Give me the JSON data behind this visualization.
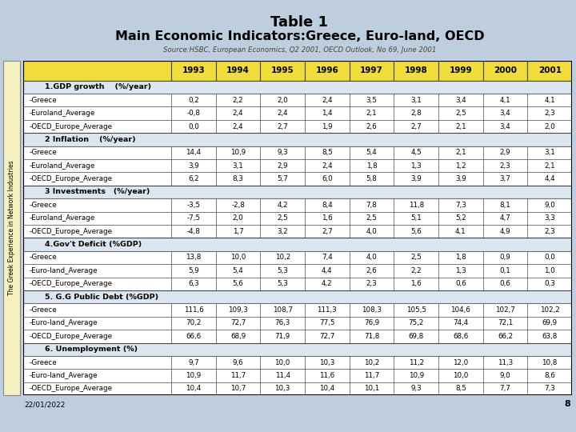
{
  "title_line1": "Table 1",
  "title_line2": "Main Economic Indicators:Greece, Euro-land, OECD",
  "source": "Source:HSBC, European Economics, Q2 2001, OECD Outlook, No 69, June 2001",
  "years": [
    "1993",
    "1994",
    "1995",
    "1996",
    "1997",
    "1998",
    "1999",
    "2000",
    "2001"
  ],
  "sections": [
    {
      "header": "1.GDP growth    (%/year)",
      "rows": [
        [
          "-Greece",
          "0,2",
          "2,2",
          "2,0",
          "2,4",
          "3,5",
          "3,1",
          "3,4",
          "4,1",
          "4,1"
        ],
        [
          "-Euroland_Average",
          "-0,8",
          "2,4",
          "2,4",
          "1,4",
          "2,1",
          "2,8",
          "2,5",
          "3,4",
          "2,3"
        ],
        [
          "-OECD_Europe_Average",
          "0,0",
          "2,4",
          "2,7",
          "1,9",
          "2,6",
          "2,7",
          "2,1",
          "3,4",
          "2,0"
        ]
      ]
    },
    {
      "header": "2 Inflation    (%/year)",
      "rows": [
        [
          "-Greece",
          "14,4",
          "10,9",
          "9,3",
          "8,5",
          "5,4",
          "4,5",
          "2,1",
          "2,9",
          "3,1"
        ],
        [
          "-Euroland_Average",
          "3,9",
          "3,1",
          "2,9",
          "2,4",
          "1,8",
          "1,3",
          "1,2",
          "2,3",
          "2,1"
        ],
        [
          "-OECD_Europe_Average",
          "6,2",
          "8,3",
          "5,7",
          "6,0",
          "5,8",
          "3,9",
          "3,9",
          "3,7",
          "4,4"
        ]
      ]
    },
    {
      "header": "3 Investments   (%/year)",
      "rows": [
        [
          "-Greece",
          "-3,5",
          "-2,8",
          "4,2",
          "8,4",
          "7,8",
          "11,8",
          "7,3",
          "8,1",
          "9,0"
        ],
        [
          "-Euroland_Average",
          "-7,5",
          "2,0",
          "2,5",
          "1,6",
          "2,5",
          "5,1",
          "5,2",
          "4,7",
          "3,3"
        ],
        [
          "-OECD_Europe_Average",
          "-4,8",
          "1,7",
          "3,2",
          "2,7",
          "4,0",
          "5,6",
          "4,1",
          "4,9",
          "2,3"
        ]
      ]
    },
    {
      "header": "4.Gov't Deficit (%GDP)",
      "rows": [
        [
          "-Greece",
          "13,8",
          "10,0",
          "10,2",
          "7,4",
          "4,0",
          "2,5",
          "1,8",
          "0,9",
          "0,0"
        ],
        [
          "-Euro-land_Average",
          "5,9",
          "5,4",
          "5,3",
          "4,4",
          "2,6",
          "2,2",
          "1,3",
          "0,1",
          "1,0"
        ],
        [
          "-OECD_Europe_Average",
          "6,3",
          "5,6",
          "5,3",
          "4,2",
          "2,3",
          "1,6",
          "0,6",
          "0,6",
          "0,3"
        ]
      ]
    },
    {
      "header": "5. G.G Public Debt (%GDP)",
      "rows": [
        [
          "-Greece",
          "111,6",
          "109,3",
          "108,7",
          "111,3",
          "108,3",
          "105,5",
          "104,6",
          "102,7",
          "102,2"
        ],
        [
          "-Euro-land_Average",
          "70,2",
          "72,7",
          "76,3",
          "77,5",
          "76,9",
          "75,2",
          "74,4",
          "72,1",
          "69,9"
        ],
        [
          "-OECD_Europe_Average",
          "66,6",
          "68,9",
          "71,9",
          "72,7",
          "71,8",
          "69,8",
          "68,6",
          "66,2",
          "63,8"
        ]
      ]
    },
    {
      "header": "6. Unemployment (%)",
      "rows": [
        [
          "-Greece",
          "9,7",
          "9,6",
          "10,0",
          "10,3",
          "10,2",
          "11,2",
          "12,0",
          "11,3",
          "10,8"
        ],
        [
          "-Euro-land_Average",
          "10,9",
          "11,7",
          "11,4",
          "11,6",
          "11,7",
          "10,9",
          "10,0",
          "9,0",
          "8,6"
        ],
        [
          "-OECD_Europe_Average",
          "10,4",
          "10,7",
          "10,3",
          "10,4",
          "10,1",
          "9,3",
          "8,5",
          "7,7",
          "7,3"
        ]
      ]
    }
  ],
  "bg_color": "#bfcede",
  "table_bg": "#dce6f0",
  "header_row_bg": "#f0dd3a",
  "sidebar_bg": "#f5f0c0",
  "sidebar_text": "The Greek Experience in Network Industries",
  "date_text": "22/01/2022",
  "page_num": "8",
  "title_color": "#000000",
  "source_color": "#444444",
  "cell_border_color": "#444444",
  "section_header_bg": "#dce6f0"
}
